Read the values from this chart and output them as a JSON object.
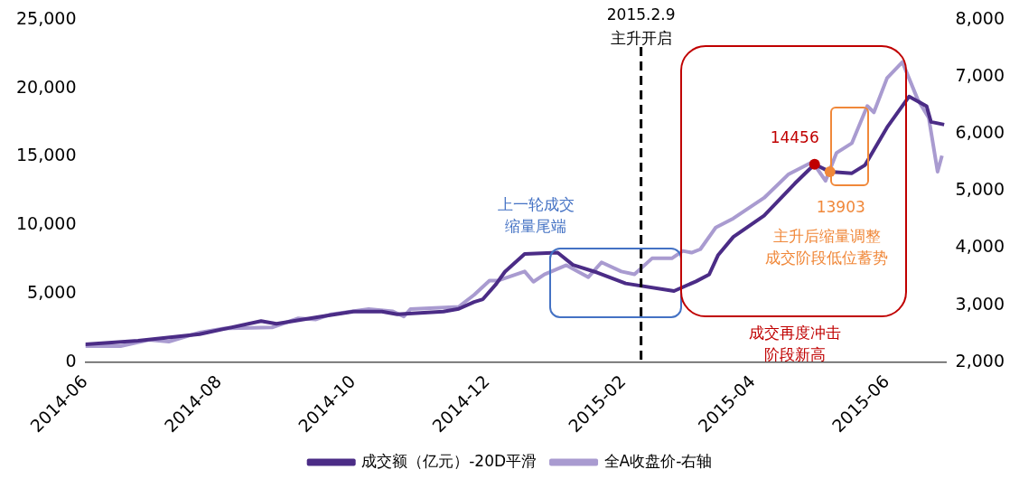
{
  "chart_data": {
    "type": "line",
    "series": [
      {
        "name": "成交额（亿元）-20D平滑",
        "color": "#4b2c86",
        "x": [
          "2014-06-01",
          "2014-06-25",
          "2014-07-23",
          "2014-08-20",
          "2014-08-27",
          "2014-09-17",
          "2014-10-01",
          "2014-10-14",
          "2014-10-21",
          "2014-11-11",
          "2014-11-18",
          "2014-11-25",
          "2014-11-29",
          "2014-12-05",
          "2014-12-09",
          "2014-12-18",
          "2015-01-02",
          "2015-01-09",
          "2015-01-20",
          "2015-02-02",
          "2015-02-24",
          "2015-03-06",
          "2015-03-12",
          "2015-03-16",
          "2015-03-23",
          "2015-04-06",
          "2015-04-20",
          "2015-04-29",
          "2015-05-06",
          "2015-05-16",
          "2015-05-22",
          "2015-06-01",
          "2015-06-11",
          "2015-06-19",
          "2015-06-21",
          "2015-06-27"
        ],
        "values": [
          1300,
          1570,
          2050,
          3000,
          2800,
          3350,
          3700,
          3700,
          3500,
          3700,
          3900,
          4400,
          4600,
          5700,
          6600,
          7900,
          8000,
          7100,
          6550,
          5750,
          5200,
          5900,
          6400,
          7800,
          9150,
          10700,
          13050,
          14456,
          13903,
          13800,
          14400,
          17150,
          19400,
          18700,
          17550,
          17350
        ]
      },
      {
        "name": "全A收盘价-右轴",
        "color": "#a99bd0",
        "axis": "y2",
        "x": [
          "2014-06-01",
          "2014-06-17",
          "2014-06-30",
          "2014-07-09",
          "2014-07-23",
          "2014-08-03",
          "2014-08-25",
          "2014-09-06",
          "2014-09-14",
          "2014-09-21",
          "2014-10-08",
          "2014-10-19",
          "2014-10-24",
          "2014-10-27",
          "2014-11-18",
          "2014-11-25",
          "2014-12-02",
          "2014-12-06",
          "2014-12-18",
          "2014-12-22",
          "2014-12-27",
          "2015-01-06",
          "2015-01-16",
          "2015-01-22",
          "2015-01-31",
          "2015-02-06",
          "2015-02-14",
          "2015-02-23",
          "2015-02-28",
          "2015-03-04",
          "2015-03-08",
          "2015-03-15",
          "2015-03-23",
          "2015-04-06",
          "2015-04-17",
          "2015-04-28",
          "2015-05-04",
          "2015-05-09",
          "2015-05-16",
          "2015-05-23",
          "2015-05-26",
          "2015-06-01",
          "2015-06-08",
          "2015-06-15",
          "2015-06-20",
          "2015-06-24",
          "2015-06-26"
        ],
        "values": [
          2280,
          2280,
          2390,
          2360,
          2520,
          2590,
          2610,
          2770,
          2750,
          2840,
          2930,
          2890,
          2800,
          2930,
          2970,
          3180,
          3430,
          3430,
          3590,
          3410,
          3540,
          3700,
          3490,
          3750,
          3590,
          3540,
          3820,
          3820,
          3950,
          3920,
          3980,
          4360,
          4520,
          4880,
          5290,
          5510,
          5180,
          5670,
          5840,
          6490,
          6380,
          6980,
          7260,
          6600,
          6280,
          5340,
          5620
        ]
      }
    ],
    "xlim": [
      "2014-06-01",
      "2015-06-28"
    ],
    "xticks": [
      "2014-06",
      "2014-08",
      "2014-10",
      "2014-12",
      "2015-02",
      "2015-04",
      "2015-06"
    ],
    "ylim": [
      0,
      25000
    ],
    "yticks": [
      {
        "value": 0,
        "label": "0"
      },
      {
        "value": 5000,
        "label": "5,000"
      },
      {
        "value": 10000,
        "label": "10,000"
      },
      {
        "value": 15000,
        "label": "15,000"
      },
      {
        "value": 20000,
        "label": "20,000"
      },
      {
        "value": 25000,
        "label": "25,000"
      }
    ],
    "y2lim": [
      2000,
      8000
    ],
    "y2ticks": [
      {
        "value": 2000,
        "label": "2,000"
      },
      {
        "value": 3000,
        "label": "3,000"
      },
      {
        "value": 4000,
        "label": "4,000"
      },
      {
        "value": 5000,
        "label": "5,000"
      },
      {
        "value": 6000,
        "label": "6,000"
      },
      {
        "value": 7000,
        "label": "7,000"
      },
      {
        "value": 8000,
        "label": "8,000"
      }
    ],
    "ref_lines": [
      {
        "axis": "x",
        "value": "2015-02-09",
        "label": "2015.2.9\n主升开启",
        "color": "#000000",
        "line_style": "dashed"
      }
    ],
    "annotations": [
      "上一轮成交缩量尾端",
      {
        "text": "14456",
        "x": "2015-04-29",
        "y": 14456
      },
      {
        "text": "13903",
        "x": "2015-05-06",
        "y": 13903
      },
      "主升后缩量调整成交阶段低位蓄势",
      "成交再度冲击阶段新高"
    ],
    "grid": false,
    "legend": "bottom",
    "marker": "none",
    "line_style": "solid"
  }
}
